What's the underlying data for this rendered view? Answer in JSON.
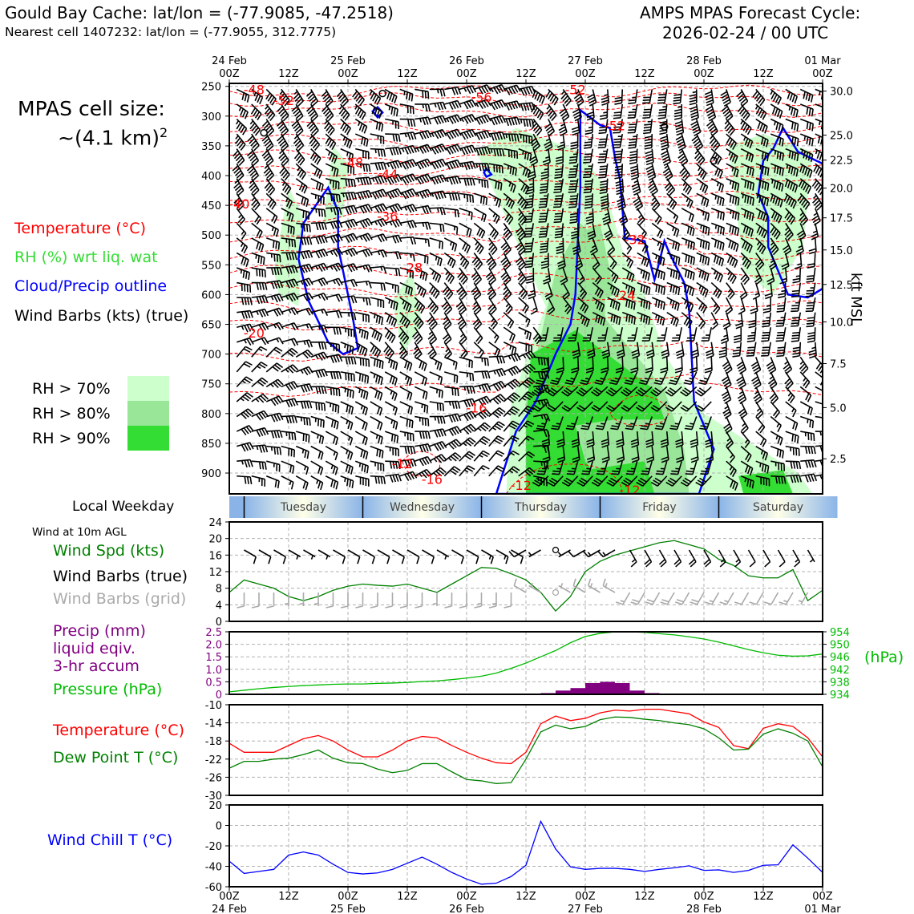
{
  "header": {
    "site": "Gould Bay Cache: lat/lon = (-77.9085, -47.2518)",
    "nearest": "Nearest cell 1407232: lat/lon = (-77.9055, 312.7775)",
    "cycle_line1": "AMPS MPAS Forecast Cycle:",
    "cycle_line2": "2026-02-24 / 00 UTC"
  },
  "legend_top": {
    "cell_size_line1": "MPAS cell size:",
    "cell_size_line2": "~(4.1 km)",
    "cell_size_sup": "2",
    "temperature": "Temperature (°C)",
    "rh": "RH (%) wrt liq. wat",
    "cloud": "Cloud/Precip outline",
    "barbs": "Wind Barbs (kts) (true)",
    "rh70": "RH > 70%",
    "rh80": "RH > 80%",
    "rh90": "RH > 90%"
  },
  "legend_bottom": {
    "weekday": "Local Weekday",
    "wind10m": "Wind at 10m AGL",
    "wind_spd": "Wind Spd (kts)",
    "barbs_true": "Wind Barbs (true)",
    "barbs_grid": "Wind Barbs (grid)",
    "precip1": "Precip (mm)",
    "precip2": "liquid eqiv.",
    "precip3": "3-hr accum",
    "pressure": "Pressure (hPa)",
    "hpa_unit": "(hPa)",
    "temp": "Temperature (°C)",
    "dewpoint": "Dew Point T (°C)",
    "windchill": "Wind Chill T (°C)"
  },
  "colors": {
    "temp": "#ff0000",
    "rh_legend": "#33dd33",
    "cloud": "#0000ff",
    "rh70": "#ccffcc",
    "rh80": "#99e699",
    "rh90": "#33dd33",
    "green": "#008000",
    "purple": "#800080",
    "pressure": "#00bb00",
    "windchill": "#0000ff",
    "grid_barb": "#aaaaaa"
  },
  "chart_data": [
    {
      "type": "time-height cross-section",
      "name": "upper-air",
      "x_top_dates": [
        "24 Feb",
        "25 Feb",
        "26 Feb",
        "27 Feb",
        "28 Feb",
        "01 Mar"
      ],
      "x_top_hours": [
        "00Z",
        "12Z",
        "00Z",
        "12Z",
        "00Z",
        "12Z",
        "00Z",
        "12Z",
        "00Z",
        "12Z",
        "00Z"
      ],
      "x_range_hours": [
        0,
        120
      ],
      "ylabel_left": "hPa",
      "y_ticks_hpa": [
        "250",
        "300",
        "350",
        "400",
        "450",
        "500",
        "550",
        "600",
        "650",
        "700",
        "750",
        "800",
        "850",
        "900"
      ],
      "ylim_hpa": [
        935,
        245
      ],
      "ylabel_right": "kft MSL",
      "y_right_ticks": [
        {
          "label": "30.0",
          "hpa": 258
        },
        {
          "label": "25.0",
          "hpa": 332
        },
        {
          "label": "22.5",
          "hpa": 374
        },
        {
          "label": "20.0",
          "hpa": 421
        },
        {
          "label": "17.5",
          "hpa": 471
        },
        {
          "label": "15.0",
          "hpa": 525
        },
        {
          "label": "12.5",
          "hpa": 583
        },
        {
          "label": "10.0",
          "hpa": 646
        },
        {
          "label": "7.5",
          "hpa": 716
        },
        {
          "label": "5.0",
          "hpa": 790
        },
        {
          "label": "2.5",
          "hpa": 876
        }
      ],
      "isotherm_labels": [
        {
          "text": "-48",
          "hour": 5,
          "hpa": 255
        },
        {
          "text": "-52",
          "hour": 11,
          "hpa": 273
        },
        {
          "text": "-56",
          "hour": 51,
          "hpa": 268
        },
        {
          "text": "-52",
          "hour": 70,
          "hpa": 255
        },
        {
          "text": "-52",
          "hour": 78,
          "hpa": 316
        },
        {
          "text": "-48",
          "hour": 25,
          "hpa": 378
        },
        {
          "text": "-44",
          "hour": 32,
          "hpa": 397
        },
        {
          "text": "-40",
          "hour": 2,
          "hpa": 447
        },
        {
          "text": "-36",
          "hour": 32,
          "hpa": 468
        },
        {
          "text": "-32",
          "hour": 82,
          "hpa": 507
        },
        {
          "text": "-28",
          "hour": 37,
          "hpa": 554
        },
        {
          "text": "-24",
          "hour": 80,
          "hpa": 601
        },
        {
          "text": "-20",
          "hour": 5,
          "hpa": 664
        },
        {
          "text": "-16",
          "hour": 50,
          "hpa": 790
        },
        {
          "text": "-12",
          "hour": 35,
          "hpa": 884
        },
        {
          "text": "-16",
          "hour": 41,
          "hpa": 910
        },
        {
          "text": "-12",
          "hour": 59,
          "hpa": 920
        },
        {
          "text": "-12",
          "hour": 81,
          "hpa": 928
        }
      ]
    },
    {
      "type": "weekday-strip",
      "days": [
        {
          "name": "Tuesday",
          "hour": 12
        },
        {
          "name": "Wednesday",
          "hour": 36
        },
        {
          "name": "Thursday",
          "hour": 60
        },
        {
          "name": "Friday",
          "hour": 84
        },
        {
          "name": "Saturday",
          "hour": 108
        }
      ],
      "boundaries_hours": [
        3,
        27,
        51,
        75,
        99
      ]
    },
    {
      "type": "line",
      "name": "wind10m",
      "ylabel": "kts",
      "ylim": [
        0,
        24
      ],
      "y_ticks": [
        "0",
        "4",
        "8",
        "12",
        "16",
        "20",
        "24"
      ],
      "x_hours": [
        0,
        3,
        6,
        9,
        12,
        15,
        18,
        21,
        24,
        27,
        30,
        33,
        36,
        39,
        42,
        45,
        48,
        51,
        54,
        57,
        60,
        63,
        66,
        69,
        72,
        75,
        78,
        81,
        84,
        87,
        90,
        93,
        96,
        99,
        102,
        105,
        108,
        111,
        114,
        117,
        120
      ],
      "wind_speed_kts": [
        7,
        10,
        9,
        8,
        6,
        5,
        6,
        7.5,
        8.5,
        9,
        8.7,
        8.5,
        9,
        8,
        7,
        9,
        11,
        13,
        12.8,
        11.5,
        10,
        7,
        2.5,
        6,
        12,
        14.5,
        16,
        17,
        18,
        19,
        19.5,
        18.5,
        17.5,
        15,
        13.5,
        11,
        10.5,
        10.5,
        12.5,
        5,
        7.5
      ]
    },
    {
      "type": "bar+line",
      "name": "precip-pressure",
      "precip_ylabel": "mm",
      "precip_ylim": [
        0,
        2.5
      ],
      "precip_ticks": [
        "0",
        "0.5",
        "1.0",
        "1.5",
        "2.0",
        "2.5"
      ],
      "precip_bars": [
        {
          "hour": 64.5,
          "value": 0.05
        },
        {
          "hour": 67.5,
          "value": 0.15
        },
        {
          "hour": 70.5,
          "value": 0.25
        },
        {
          "hour": 73.5,
          "value": 0.45
        },
        {
          "hour": 76.5,
          "value": 0.5
        },
        {
          "hour": 79.5,
          "value": 0.45
        },
        {
          "hour": 82.5,
          "value": 0.15
        },
        {
          "hour": 85.5,
          "value": 0.05
        }
      ],
      "pressure_ylabel": "hPa",
      "pressure_ylim": [
        934,
        954
      ],
      "pressure_ticks": [
        "934",
        "938",
        "942",
        "946",
        "950",
        "954"
      ],
      "pressure_hpa": [
        934.8,
        935.3,
        935.8,
        936.2,
        936.5,
        936.8,
        937,
        937.2,
        937.3,
        937.3,
        937.5,
        937.6,
        937.8,
        938.1,
        938.3,
        938.7,
        939.2,
        939.8,
        940.8,
        942.3,
        944,
        946,
        948,
        950.5,
        952.5,
        953.5,
        954,
        954,
        953.8,
        953.4,
        953,
        952.4,
        951.7,
        950.7,
        949.5,
        948.3,
        947.3,
        946.5,
        946.2,
        946.3,
        946.9
      ]
    },
    {
      "type": "line",
      "name": "temperature-dewpoint",
      "ylabel": "°C",
      "ylim": [
        -30,
        -10
      ],
      "y_ticks": [
        "-10",
        "-14",
        "-18",
        "-22",
        "-26",
        "-30"
      ],
      "series": [
        {
          "name": "Temperature (°C)",
          "color": "#ff0000",
          "values": [
            -18.5,
            -20.5,
            -20.5,
            -20.5,
            -19,
            -17.5,
            -16.8,
            -18,
            -20,
            -21.5,
            -21.5,
            -20,
            -18,
            -17,
            -17.3,
            -19,
            -20.5,
            -21.8,
            -22.8,
            -23,
            -20.5,
            -14.2,
            -12.5,
            -13.5,
            -13,
            -11.8,
            -11.2,
            -11.4,
            -11,
            -11,
            -11.5,
            -12,
            -13.8,
            -15,
            -19,
            -19.7,
            -15.2,
            -14.2,
            -14.8,
            -17.3,
            -21.5
          ]
        },
        {
          "name": "Dew Point T (°C)",
          "color": "#008000",
          "values": [
            -24,
            -22.5,
            -22.5,
            -22,
            -21.8,
            -21,
            -20,
            -21.8,
            -22.8,
            -23,
            -24.2,
            -25,
            -24.5,
            -23,
            -23,
            -24.8,
            -26.5,
            -26.8,
            -27.4,
            -27.2,
            -22,
            -16,
            -14.5,
            -15.3,
            -14.8,
            -13.3,
            -12.7,
            -12.8,
            -13.2,
            -13.5,
            -14,
            -14.4,
            -15.3,
            -17.3,
            -20,
            -19.8,
            -16.5,
            -15.3,
            -16.3,
            -18,
            -23.7
          ]
        }
      ]
    },
    {
      "type": "line",
      "name": "windchill",
      "ylabel": "°C",
      "ylim": [
        -60,
        20
      ],
      "y_ticks": [
        "20",
        "0",
        "-20",
        "-40",
        "-60"
      ],
      "series": [
        {
          "name": "Wind Chill T (°C)",
          "color": "#0000ff",
          "values": [
            -35,
            -47,
            -45,
            -43,
            -29,
            -26,
            -29,
            -38,
            -46,
            -47.5,
            -46.5,
            -43,
            -37,
            -31,
            -38,
            -46,
            -52.5,
            -57.5,
            -56.5,
            -50,
            -39,
            4,
            -23,
            -40.5,
            -43,
            -42,
            -42,
            -43,
            -45,
            -43,
            -41.5,
            -39.5,
            -44,
            -43.5,
            -46,
            -44,
            -39,
            -38.5,
            -19,
            -32,
            -46
          ]
        }
      ]
    },
    {
      "type": "axis",
      "name": "x-bottom",
      "hours": [
        "00Z",
        "12Z",
        "00Z",
        "12Z",
        "00Z",
        "12Z",
        "00Z",
        "12Z",
        "00Z",
        "12Z",
        "00Z"
      ],
      "dates": [
        "24 Feb",
        "25 Feb",
        "26 Feb",
        "27 Feb",
        "28 Feb",
        "01 Mar"
      ]
    }
  ]
}
